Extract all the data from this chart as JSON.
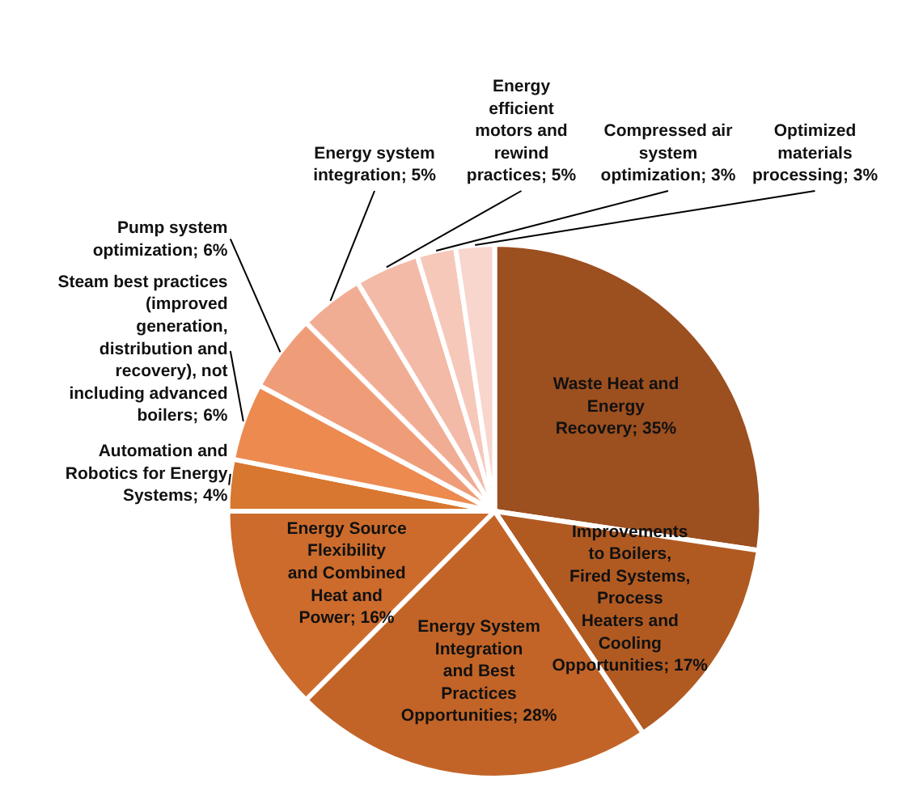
{
  "chart_data": {
    "type": "pie",
    "categories": [
      "Waste Heat and Energy Recovery",
      "Improvements to Boilers, Fired Systems, Process Heaters and Cooling Opportunities",
      "Energy System Integration and Best Practices Opportunities",
      "Energy Source Flexibility and Combined Heat and Power",
      "Automation and Robotics for Energy Systems",
      "Steam best practices (improved generation, distribution and recovery), not including advanced boilers",
      "Pump system optimization",
      "Energy system integration",
      "Energy efficient motors and rewind practices",
      "Compressed air system optimization",
      "Optimized materials processing"
    ],
    "values": [
      35,
      17,
      28,
      16,
      4,
      6,
      6,
      5,
      5,
      3,
      3
    ],
    "value_labels": [
      "35%",
      "17%",
      "28%",
      "16%",
      "4%",
      "6%",
      "6%",
      "5%",
      "5%",
      "3%",
      "3%"
    ],
    "colors": [
      "#9c4f1f",
      "#b05a22",
      "#c26427",
      "#cc6b2c",
      "#d8772f",
      "#ec8a50",
      "#ef9d78",
      "#f1ad93",
      "#f3baa7",
      "#f6c8ba",
      "#f8d6cd"
    ],
    "data_labels": true
  }
}
